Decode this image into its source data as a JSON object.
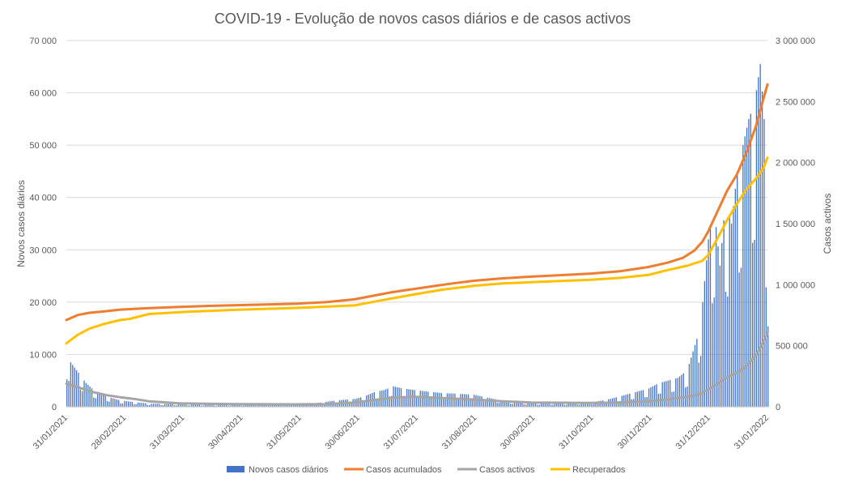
{
  "chart_data": {
    "type": "bar+line",
    "title": "COVID-19 - Evolução de novos casos diários e de casos activos",
    "y_left_label": "Novos casos diários",
    "y_right_label": "Casos activos",
    "y_left_range": [
      0,
      70000
    ],
    "y_right_range": [
      0,
      3000000
    ],
    "y_left_ticks": [
      "0",
      "10 000",
      "20 000",
      "30 000",
      "40 000",
      "50 000",
      "60 000",
      "70 000"
    ],
    "y_right_ticks": [
      "0",
      "500 000",
      "1 000 000",
      "1 500 000",
      "2 000 000",
      "2 500 000",
      "3 000 000"
    ],
    "x_ticks": [
      "31/01/2021",
      "28/02/2021",
      "31/03/2021",
      "30/04/2021",
      "31/05/2021",
      "30/06/2021",
      "31/07/2021",
      "31/08/2021",
      "30/09/2021",
      "31/10/2021",
      "30/11/2021",
      "31/12/2021",
      "31/01/2022"
    ],
    "x_range": [
      "2021-01-31",
      "2022-01-31"
    ],
    "grid": true,
    "legend_position": "bottom",
    "series": [
      {
        "name": "Novos casos diários",
        "kind": "bar",
        "axis": "left",
        "color": "#4472C4",
        "dates": [
          "2021-01-31",
          "2021-02-03",
          "2021-02-06",
          "2021-02-10",
          "2021-02-14",
          "2021-02-18",
          "2021-02-22",
          "2021-02-28",
          "2021-03-07",
          "2021-03-15",
          "2021-03-31",
          "2021-04-15",
          "2021-04-30",
          "2021-05-15",
          "2021-05-31",
          "2021-06-10",
          "2021-06-20",
          "2021-06-30",
          "2021-07-05",
          "2021-07-10",
          "2021-07-15",
          "2021-07-20",
          "2021-07-25",
          "2021-07-31",
          "2021-08-07",
          "2021-08-15",
          "2021-08-22",
          "2021-08-31",
          "2021-09-10",
          "2021-09-20",
          "2021-09-30",
          "2021-10-15",
          "2021-10-31",
          "2021-11-10",
          "2021-11-20",
          "2021-11-30",
          "2021-12-05",
          "2021-12-10",
          "2021-12-15",
          "2021-12-20",
          "2021-12-25",
          "2021-12-28",
          "2021-12-31",
          "2022-01-03",
          "2022-01-06",
          "2022-01-09",
          "2022-01-12",
          "2022-01-15",
          "2022-01-18",
          "2022-01-21",
          "2022-01-24",
          "2022-01-27",
          "2022-01-29",
          "2022-01-31"
        ],
        "values": [
          9500,
          8000,
          6500,
          4500,
          3200,
          2500,
          1800,
          1200,
          900,
          600,
          500,
          400,
          400,
          450,
          500,
          700,
          1200,
          1500,
          2000,
          2800,
          3200,
          3900,
          3500,
          3200,
          2900,
          2600,
          2500,
          2300,
          1500,
          1000,
          700,
          700,
          800,
          1500,
          2500,
          3500,
          4500,
          5000,
          5500,
          7000,
          13000,
          20000,
          32000,
          38000,
          27000,
          40000,
          35000,
          45000,
          50000,
          55000,
          58000,
          65500,
          55000,
          28000
        ]
      },
      {
        "name": "Casos acumulados",
        "kind": "line",
        "axis": "right",
        "color": "#ED7D31",
        "dates": [
          "2021-01-31",
          "2021-02-06",
          "2021-02-12",
          "2021-02-20",
          "2021-02-28",
          "2021-03-15",
          "2021-03-31",
          "2021-04-15",
          "2021-04-30",
          "2021-05-15",
          "2021-05-31",
          "2021-06-15",
          "2021-06-30",
          "2021-07-10",
          "2021-07-20",
          "2021-07-31",
          "2021-08-10",
          "2021-08-20",
          "2021-08-31",
          "2021-09-15",
          "2021-09-30",
          "2021-10-15",
          "2021-10-31",
          "2021-11-15",
          "2021-11-30",
          "2021-12-10",
          "2021-12-18",
          "2021-12-24",
          "2021-12-28",
          "2021-12-31",
          "2022-01-05",
          "2022-01-10",
          "2022-01-15",
          "2022-01-20",
          "2022-01-25",
          "2022-01-29",
          "2022-01-31"
        ],
        "values": [
          711000,
          752000,
          770000,
          782000,
          796000,
          808000,
          818000,
          826000,
          832000,
          838000,
          845000,
          857000,
          880000,
          910000,
          940000,
          965000,
          988000,
          1010000,
          1032000,
          1052000,
          1066000,
          1078000,
          1091000,
          1110000,
          1145000,
          1180000,
          1220000,
          1280000,
          1350000,
          1430000,
          1600000,
          1770000,
          1900000,
          2080000,
          2300000,
          2530000,
          2640000
        ]
      },
      {
        "name": "Casos activos",
        "kind": "line",
        "axis": "right",
        "color": "#A5A5A5",
        "dates": [
          "2021-01-31",
          "2021-02-07",
          "2021-02-14",
          "2021-02-21",
          "2021-02-28",
          "2021-03-07",
          "2021-03-15",
          "2021-03-31",
          "2021-04-30",
          "2021-05-31",
          "2021-06-15",
          "2021-06-30",
          "2021-07-10",
          "2021-07-20",
          "2021-07-31",
          "2021-08-15",
          "2021-08-31",
          "2021-09-15",
          "2021-09-30",
          "2021-10-31",
          "2021-11-15",
          "2021-11-30",
          "2021-12-10",
          "2021-12-20",
          "2021-12-28",
          "2021-12-31",
          "2022-01-05",
          "2022-01-10",
          "2022-01-15",
          "2022-01-20",
          "2022-01-25",
          "2022-01-29",
          "2022-01-31"
        ],
        "values": [
          190000,
          155000,
          120000,
          95000,
          78000,
          65000,
          45000,
          28000,
          22000,
          20000,
          22000,
          35000,
          55000,
          75000,
          82000,
          72000,
          60000,
          45000,
          35000,
          32000,
          35000,
          45000,
          60000,
          80000,
          110000,
          140000,
          190000,
          240000,
          280000,
          330000,
          420000,
          540000,
          600000
        ]
      },
      {
        "name": "Recuperados",
        "kind": "line",
        "axis": "right",
        "color": "#FFC000",
        "dates": [
          "2021-01-31",
          "2021-02-06",
          "2021-02-12",
          "2021-02-20",
          "2021-02-28",
          "2021-03-05",
          "2021-03-15",
          "2021-03-31",
          "2021-04-30",
          "2021-05-31",
          "2021-06-30",
          "2021-07-15",
          "2021-07-31",
          "2021-08-15",
          "2021-08-31",
          "2021-09-15",
          "2021-09-30",
          "2021-10-15",
          "2021-10-31",
          "2021-11-15",
          "2021-11-30",
          "2021-12-10",
          "2021-12-20",
          "2021-12-28",
          "2021-12-31",
          "2022-01-05",
          "2022-01-10",
          "2022-01-15",
          "2022-01-20",
          "2022-01-25",
          "2022-01-29",
          "2022-01-31"
        ],
        "values": [
          520000,
          590000,
          640000,
          680000,
          710000,
          720000,
          760000,
          775000,
          795000,
          810000,
          830000,
          875000,
          920000,
          960000,
          990000,
          1010000,
          1020000,
          1030000,
          1040000,
          1055000,
          1080000,
          1120000,
          1155000,
          1195000,
          1240000,
          1380000,
          1530000,
          1660000,
          1780000,
          1870000,
          1960000,
          2040000
        ]
      }
    ]
  }
}
